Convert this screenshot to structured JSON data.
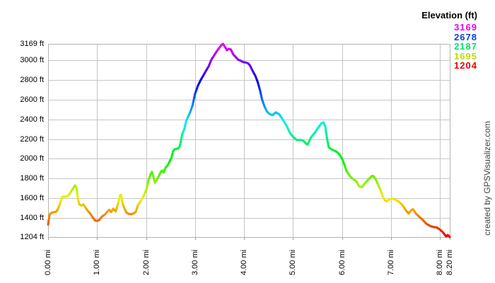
{
  "watermark": "created by GPSVisualizer.com",
  "chart_data": {
    "type": "line",
    "title": "",
    "xlabel": "",
    "ylabel": "",
    "grid": true,
    "xlim": [
      0,
      8.2
    ],
    "ylim": [
      1204,
      3169
    ],
    "legend": {
      "title": "Elevation (ft)",
      "position": "top-right",
      "entries": [
        {
          "label": "3169",
          "color": "#f000f0"
        },
        {
          "label": "2678",
          "color": "#0840e8"
        },
        {
          "label": "2187",
          "color": "#00dd6e"
        },
        {
          "label": "1695",
          "color": "#b8dd00"
        },
        {
          "label": "1204",
          "color": "#e80000"
        }
      ]
    },
    "x_ticks": [
      {
        "label": "0.00 mi",
        "value": 0.0
      },
      {
        "label": "1.00 mi",
        "value": 1.0
      },
      {
        "label": "2.00 mi",
        "value": 2.0
      },
      {
        "label": "3.00 mi",
        "value": 3.0
      },
      {
        "label": "4.00 mi",
        "value": 4.0
      },
      {
        "label": "5.00 mi",
        "value": 5.0
      },
      {
        "label": "6.00 mi",
        "value": 6.0
      },
      {
        "label": "7.00 mi",
        "value": 7.0
      },
      {
        "label": "8.00 mi",
        "value": 8.0
      },
      {
        "label": "8.20 mi",
        "value": 8.2
      }
    ],
    "y_ticks": [
      {
        "label": "3169 ft",
        "value": 3169
      },
      {
        "label": "3000 ft",
        "value": 3000
      },
      {
        "label": "2800 ft",
        "value": 2800
      },
      {
        "label": "2600 ft",
        "value": 2600
      },
      {
        "label": "2400 ft",
        "value": 2400
      },
      {
        "label": "2200 ft",
        "value": 2200
      },
      {
        "label": "2000 ft",
        "value": 2000
      },
      {
        "label": "1800 ft",
        "value": 1800
      },
      {
        "label": "1600 ft",
        "value": 1600
      },
      {
        "label": "1400 ft",
        "value": 1400
      },
      {
        "label": "1204 ft",
        "value": 1204
      }
    ],
    "color_scale": "rainbow by elevation: hue 0 (red) at 1204 ft to hue 300 (magenta) at 3169 ft",
    "series": [
      {
        "name": "Elevation (ft)",
        "points": [
          [
            0.0,
            1330
          ],
          [
            0.03,
            1432
          ],
          [
            0.07,
            1450
          ],
          [
            0.13,
            1458
          ],
          [
            0.17,
            1463
          ],
          [
            0.21,
            1498
          ],
          [
            0.25,
            1555
          ],
          [
            0.28,
            1605
          ],
          [
            0.32,
            1618
          ],
          [
            0.37,
            1615
          ],
          [
            0.42,
            1628
          ],
          [
            0.47,
            1668
          ],
          [
            0.52,
            1705
          ],
          [
            0.55,
            1728
          ],
          [
            0.58,
            1703
          ],
          [
            0.61,
            1592
          ],
          [
            0.64,
            1535
          ],
          [
            0.68,
            1524
          ],
          [
            0.72,
            1536
          ],
          [
            0.76,
            1506
          ],
          [
            0.81,
            1470
          ],
          [
            0.86,
            1443
          ],
          [
            0.91,
            1403
          ],
          [
            0.96,
            1372
          ],
          [
            1.01,
            1369
          ],
          [
            1.05,
            1380
          ],
          [
            1.1,
            1412
          ],
          [
            1.16,
            1433
          ],
          [
            1.21,
            1462
          ],
          [
            1.25,
            1481
          ],
          [
            1.29,
            1458
          ],
          [
            1.33,
            1493
          ],
          [
            1.38,
            1464
          ],
          [
            1.43,
            1545
          ],
          [
            1.47,
            1628
          ],
          [
            1.49,
            1634
          ],
          [
            1.52,
            1548
          ],
          [
            1.56,
            1492
          ],
          [
            1.6,
            1452
          ],
          [
            1.65,
            1438
          ],
          [
            1.7,
            1436
          ],
          [
            1.75,
            1445
          ],
          [
            1.79,
            1460
          ],
          [
            1.83,
            1522
          ],
          [
            1.88,
            1562
          ],
          [
            1.93,
            1602
          ],
          [
            1.97,
            1645
          ],
          [
            2.01,
            1690
          ],
          [
            2.05,
            1782
          ],
          [
            2.09,
            1840
          ],
          [
            2.12,
            1866
          ],
          [
            2.15,
            1818
          ],
          [
            2.18,
            1757
          ],
          [
            2.22,
            1790
          ],
          [
            2.26,
            1822
          ],
          [
            2.3,
            1866
          ],
          [
            2.33,
            1880
          ],
          [
            2.36,
            1860
          ],
          [
            2.4,
            1912
          ],
          [
            2.44,
            1932
          ],
          [
            2.48,
            1972
          ],
          [
            2.52,
            2012
          ],
          [
            2.55,
            2076
          ],
          [
            2.59,
            2098
          ],
          [
            2.64,
            2103
          ],
          [
            2.68,
            2118
          ],
          [
            2.71,
            2175
          ],
          [
            2.74,
            2255
          ],
          [
            2.78,
            2300
          ],
          [
            2.82,
            2386
          ],
          [
            2.86,
            2430
          ],
          [
            2.9,
            2472
          ],
          [
            2.95,
            2545
          ],
          [
            3.0,
            2660
          ],
          [
            3.06,
            2745
          ],
          [
            3.12,
            2805
          ],
          [
            3.17,
            2848
          ],
          [
            3.22,
            2892
          ],
          [
            3.28,
            2942
          ],
          [
            3.33,
            3005
          ],
          [
            3.39,
            3052
          ],
          [
            3.45,
            3098
          ],
          [
            3.5,
            3132
          ],
          [
            3.54,
            3158
          ],
          [
            3.57,
            3169
          ],
          [
            3.61,
            3140
          ],
          [
            3.65,
            3105
          ],
          [
            3.69,
            3118
          ],
          [
            3.73,
            3112
          ],
          [
            3.78,
            3062
          ],
          [
            3.83,
            3035
          ],
          [
            3.88,
            3008
          ],
          [
            3.93,
            2998
          ],
          [
            3.98,
            2984
          ],
          [
            4.03,
            2980
          ],
          [
            4.08,
            2972
          ],
          [
            4.12,
            2950
          ],
          [
            4.18,
            2890
          ],
          [
            4.23,
            2845
          ],
          [
            4.28,
            2780
          ],
          [
            4.33,
            2690
          ],
          [
            4.37,
            2600
          ],
          [
            4.42,
            2530
          ],
          [
            4.47,
            2480
          ],
          [
            4.52,
            2455
          ],
          [
            4.58,
            2444
          ],
          [
            4.65,
            2472
          ],
          [
            4.72,
            2452
          ],
          [
            4.79,
            2400
          ],
          [
            4.87,
            2335
          ],
          [
            4.94,
            2262
          ],
          [
            5.01,
            2219
          ],
          [
            5.08,
            2190
          ],
          [
            5.15,
            2192
          ],
          [
            5.21,
            2184
          ],
          [
            5.27,
            2153
          ],
          [
            5.3,
            2146
          ],
          [
            5.37,
            2219
          ],
          [
            5.44,
            2262
          ],
          [
            5.51,
            2313
          ],
          [
            5.58,
            2360
          ],
          [
            5.62,
            2371
          ],
          [
            5.66,
            2328
          ],
          [
            5.69,
            2219
          ],
          [
            5.73,
            2117
          ],
          [
            5.79,
            2095
          ],
          [
            5.85,
            2082
          ],
          [
            5.9,
            2068
          ],
          [
            5.95,
            2045
          ],
          [
            6.01,
            1990
          ],
          [
            6.05,
            1940
          ],
          [
            6.09,
            1880
          ],
          [
            6.14,
            1840
          ],
          [
            6.19,
            1808
          ],
          [
            6.24,
            1790
          ],
          [
            6.29,
            1772
          ],
          [
            6.35,
            1719
          ],
          [
            6.41,
            1712
          ],
          [
            6.47,
            1752
          ],
          [
            6.54,
            1790
          ],
          [
            6.6,
            1820
          ],
          [
            6.63,
            1827
          ],
          [
            6.68,
            1800
          ],
          [
            6.74,
            1733
          ],
          [
            6.79,
            1675
          ],
          [
            6.84,
            1610
          ],
          [
            6.88,
            1574
          ],
          [
            6.91,
            1567
          ],
          [
            6.96,
            1585
          ],
          [
            7.03,
            1595
          ],
          [
            7.09,
            1583
          ],
          [
            7.15,
            1567
          ],
          [
            7.22,
            1538
          ],
          [
            7.27,
            1502
          ],
          [
            7.32,
            1465
          ],
          [
            7.36,
            1443
          ],
          [
            7.42,
            1480
          ],
          [
            7.45,
            1487
          ],
          [
            7.51,
            1443
          ],
          [
            7.58,
            1408
          ],
          [
            7.65,
            1378
          ],
          [
            7.72,
            1340
          ],
          [
            7.8,
            1316
          ],
          [
            7.87,
            1306
          ],
          [
            7.94,
            1300
          ],
          [
            8.0,
            1280
          ],
          [
            8.06,
            1252
          ],
          [
            8.11,
            1220
          ],
          [
            8.13,
            1210
          ],
          [
            8.16,
            1224
          ],
          [
            8.2,
            1204
          ]
        ]
      }
    ]
  }
}
